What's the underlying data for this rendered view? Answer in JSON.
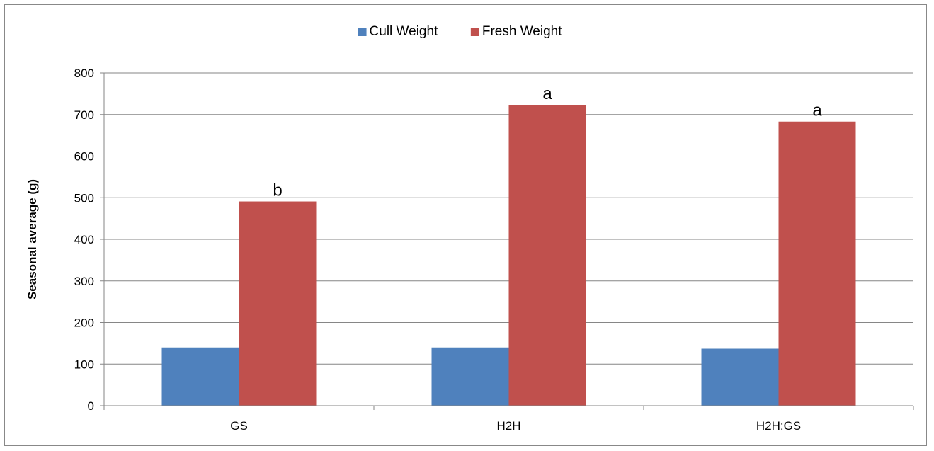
{
  "chart_data": {
    "type": "bar",
    "categories": [
      "GS",
      "H2H",
      "H2H:GS"
    ],
    "series": [
      {
        "name": "Cull Weight",
        "color": "#4F81BD",
        "values": [
          140,
          140,
          137
        ],
        "labels": [
          "",
          "",
          ""
        ]
      },
      {
        "name": "Fresh Weight",
        "color": "#C0504D",
        "values": [
          491,
          723,
          683
        ],
        "labels": [
          "b",
          "a",
          "a"
        ]
      }
    ],
    "title": "",
    "xlabel": "",
    "ylabel": "Seasonal average (g)",
    "ylim": [
      0,
      800
    ],
    "yticks": [
      0,
      100,
      200,
      300,
      400,
      500,
      600,
      700,
      800
    ],
    "grid": true,
    "legend_position": "top"
  }
}
